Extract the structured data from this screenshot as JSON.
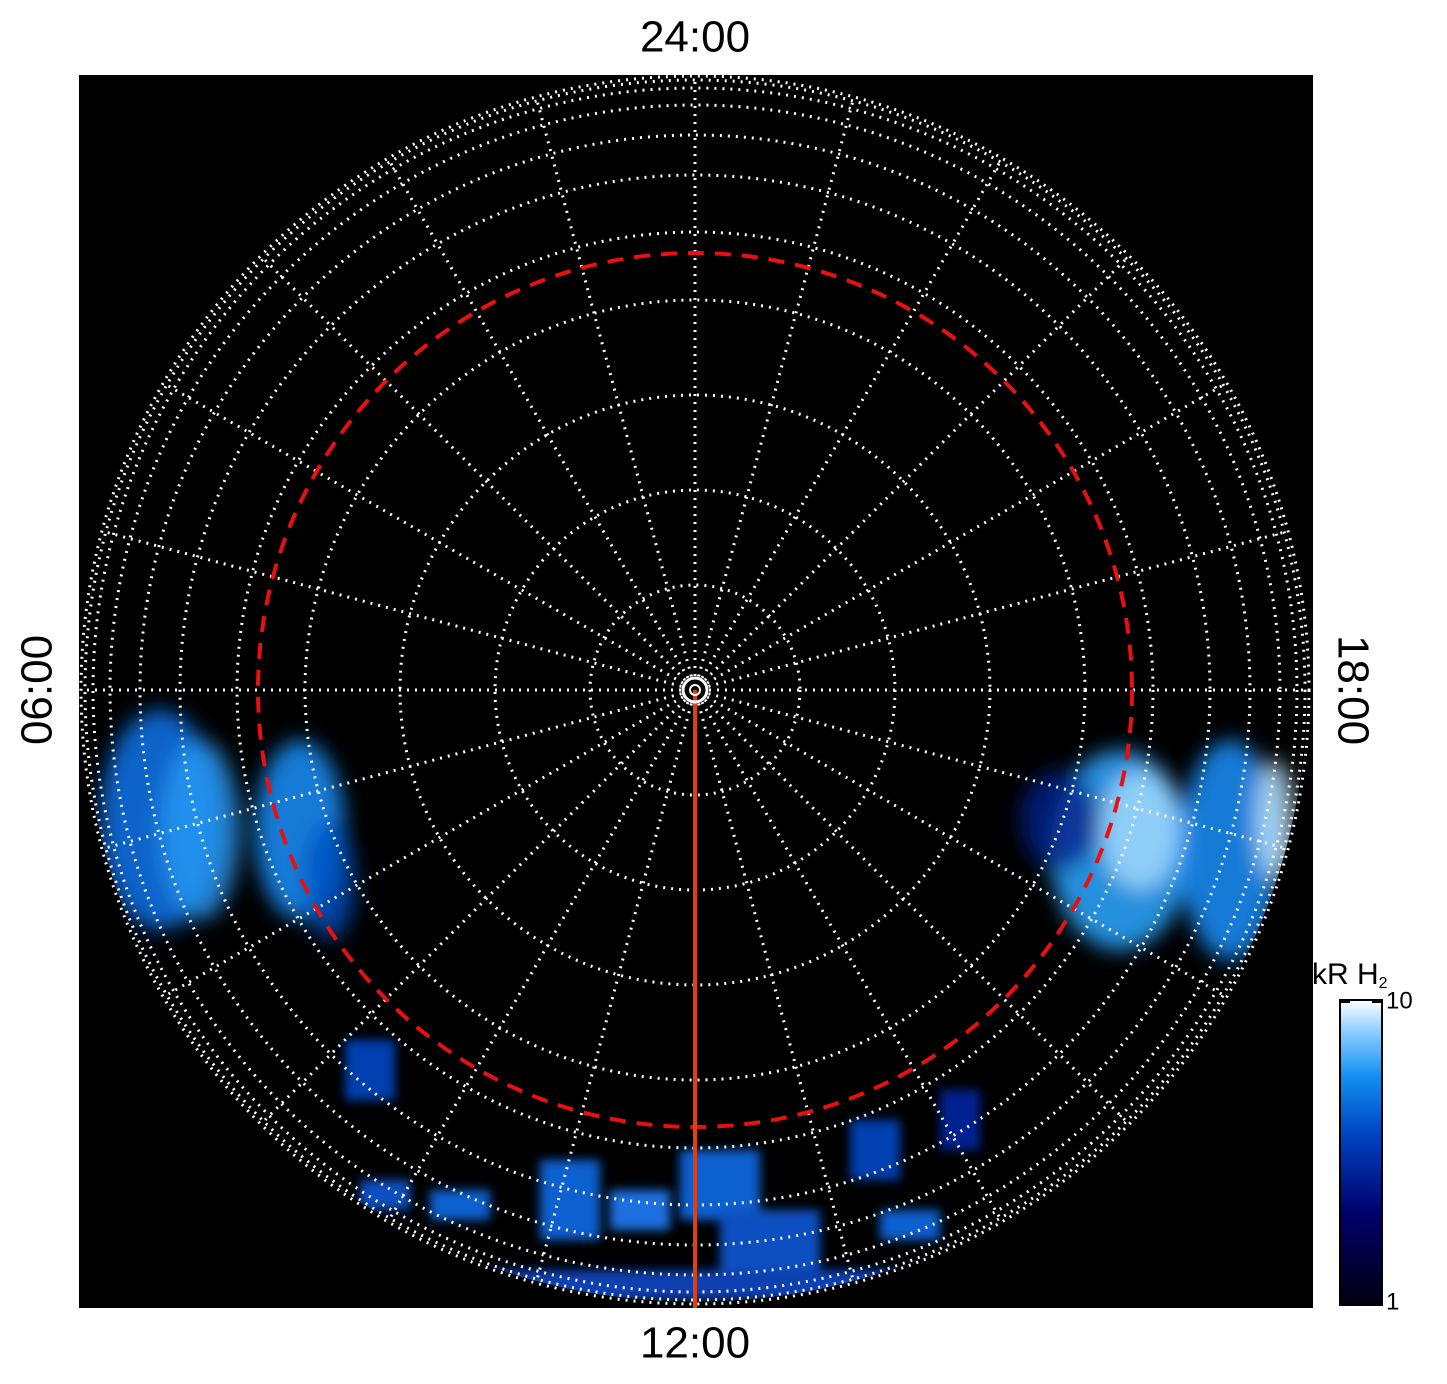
{
  "labels": {
    "top": "24:00",
    "bottom": "12:00",
    "left": "06:00",
    "right": "18:00"
  },
  "colorbar": {
    "label": "kR H",
    "label_subscript": "2",
    "lim": [
      1,
      10
    ],
    "ticks": [
      1,
      10
    ],
    "scale": "log"
  }
}
